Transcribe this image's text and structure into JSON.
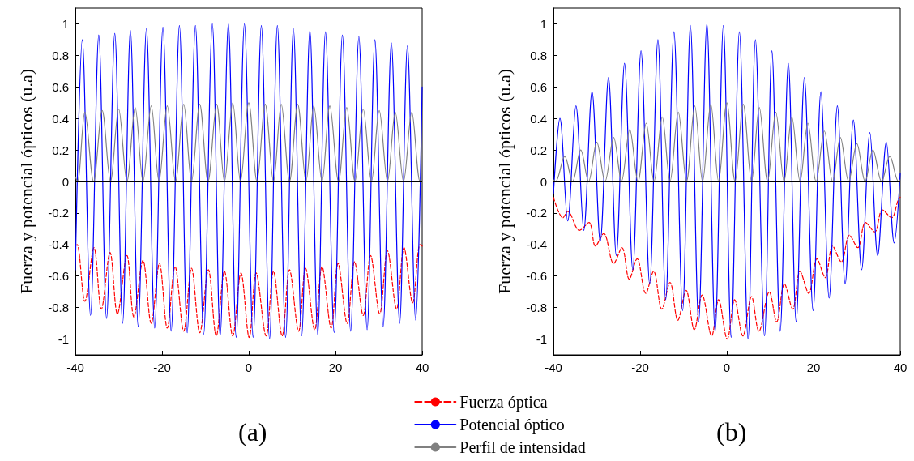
{
  "chart_data": [
    {
      "type": "line",
      "title": "(a)",
      "ylabel": "Fuerza y potencial ópticos (u.a)",
      "xlim": [
        -40,
        40
      ],
      "xticks": [
        -40,
        -20,
        0,
        20,
        40
      ],
      "ylim": [
        -1.1,
        1.1
      ],
      "yticks": [
        -1,
        -0.8,
        -0.6,
        -0.4,
        -0.2,
        0,
        0.2,
        0.4,
        0.6,
        0.8,
        1
      ],
      "grid": false,
      "marker": "none",
      "legend": "bottom right",
      "ref_lines": [
        {
          "axis": "y",
          "value": 0,
          "color": "#000000"
        }
      ],
      "series": [
        {
          "name": "Fuerza óptica",
          "color": "#ff0000",
          "line_style": "dashed",
          "x": [
            -40,
            -39.6,
            -37.8,
            -35.7,
            -34.0,
            -32.0,
            -30.3,
            -28.1,
            -26.5,
            -24.4,
            -22.5,
            -20.6,
            -18.8,
            -17.0,
            -15.0,
            -13.2,
            -11.3,
            -9.3,
            -7.5,
            -5.6,
            -3.7,
            -1.8,
            0.1,
            1.7,
            4.0,
            5.7,
            7.7,
            9.4,
            11.5,
            13.1,
            15.2,
            16.9,
            19.0,
            20.6,
            22.7,
            24.4,
            26.4,
            28.1,
            30.2,
            32.0,
            34.1,
            35.8,
            37.8,
            39.5,
            40
          ],
          "values": [
            -0.41,
            -0.4,
            -0.76,
            -0.42,
            -0.81,
            -0.45,
            -0.84,
            -0.47,
            -0.86,
            -0.5,
            -0.9,
            -0.52,
            -0.93,
            -0.54,
            -0.95,
            -0.55,
            -0.96,
            -0.56,
            -0.98,
            -0.57,
            -0.98,
            -0.58,
            -0.99,
            -0.58,
            -0.98,
            -0.57,
            -0.98,
            -0.56,
            -0.95,
            -0.55,
            -0.94,
            -0.54,
            -0.93,
            -0.52,
            -0.9,
            -0.51,
            -0.85,
            -0.47,
            -0.84,
            -0.44,
            -0.81,
            -0.42,
            -0.77,
            -0.4,
            -0.41
          ]
        },
        {
          "name": "Potencial óptico",
          "color": "#0000ff",
          "x": [
            -40,
            -38.4,
            -36.5,
            -34.6,
            -32.8,
            -30.9,
            -29.1,
            -27.3,
            -25.5,
            -23.6,
            -21.7,
            -19.8,
            -17.9,
            -16.0,
            -14.2,
            -12.3,
            -10.4,
            -8.4,
            -6.6,
            -4.7,
            -2.9,
            -1.0,
            1.0,
            2.9,
            4.8,
            6.6,
            8.5,
            10.3,
            12.2,
            14.1,
            15.9,
            17.7,
            19.7,
            21.6,
            23.5,
            25.4,
            27.3,
            29.1,
            31.0,
            32.9,
            34.8,
            36.6,
            38.5,
            40
          ],
          "values": [
            -0.56,
            0.9,
            -0.85,
            0.93,
            -0.87,
            0.94,
            -0.9,
            0.96,
            -0.92,
            0.97,
            -0.93,
            0.98,
            -0.95,
            0.99,
            -0.96,
            0.99,
            -0.97,
            1.0,
            -0.98,
            1.0,
            -0.99,
            1.0,
            -0.99,
            0.99,
            -1.0,
            0.99,
            -0.99,
            0.97,
            -0.98,
            0.96,
            -0.97,
            0.95,
            -0.96,
            0.93,
            -0.95,
            0.92,
            -0.94,
            0.9,
            -0.92,
            0.88,
            -0.9,
            0.86,
            -0.88,
            0.6
          ]
        },
        {
          "name": "Perfil de intensidad",
          "color": "#808080",
          "x": [
            -40,
            -39.5,
            -37.8,
            -35.8,
            -33.8,
            -31.9,
            -30.0,
            -28.1,
            -26.2,
            -24.4,
            -22.5,
            -20.7,
            -18.8,
            -16.9,
            -15.0,
            -13.2,
            -11.3,
            -9.4,
            -7.4,
            -5.6,
            -3.7,
            -1.9,
            0.0,
            1.9,
            3.8,
            5.7,
            7.5,
            9.4,
            11.3,
            13.2,
            15.0,
            16.9,
            18.7,
            20.7,
            22.6,
            24.5,
            26.4,
            28.3,
            30.1,
            32.0,
            33.8,
            35.7,
            37.6,
            39.5,
            40
          ],
          "values": [
            0.03,
            0,
            0.44,
            0,
            0.45,
            0,
            0.46,
            0,
            0.47,
            0,
            0.48,
            0,
            0.48,
            0,
            0.49,
            0,
            0.49,
            0,
            0.49,
            0,
            0.5,
            0,
            0.5,
            0,
            0.49,
            0,
            0.49,
            0,
            0.49,
            0,
            0.48,
            0,
            0.48,
            0,
            0.47,
            0,
            0.46,
            0,
            0.45,
            0,
            0.44,
            0,
            0.44,
            0,
            0.06
          ]
        }
      ]
    },
    {
      "type": "line",
      "title": "(b)",
      "ylabel": "Fuerza y potencial ópticos (u.a)",
      "xlim": [
        -40,
        40
      ],
      "xticks": [
        -40,
        -20,
        0,
        20,
        40
      ],
      "ylim": [
        -1.1,
        1.1
      ],
      "yticks": [
        -1,
        -0.8,
        -0.6,
        -0.4,
        -0.2,
        0,
        0.2,
        0.4,
        0.6,
        0.8,
        1
      ],
      "grid": false,
      "marker": "none",
      "ref_lines": [
        {
          "axis": "y",
          "value": 0,
          "color": "#000000"
        }
      ],
      "series": [
        {
          "color": "#ff0000",
          "line_style": "dashed",
          "x": [
            -40,
            -37.8,
            -36.7,
            -34.0,
            -31.8,
            -30.3,
            -28.4,
            -26.1,
            -24.2,
            -22.5,
            -20.7,
            -18.7,
            -16.9,
            -15.0,
            -13.1,
            -11.3,
            -9.4,
            -7.5,
            -5.7,
            -3.5,
            -1.9,
            0.1,
            1.8,
            3.7,
            5.7,
            7.4,
            9.8,
            11.5,
            13.3,
            15.2,
            16.9,
            18.9,
            20.8,
            22.7,
            24.4,
            26.4,
            28.3,
            30.2,
            32.0,
            34.1,
            35.9,
            38.0,
            39.5,
            40
          ],
          "values": [
            -0.1,
            -0.23,
            -0.19,
            -0.31,
            -0.26,
            -0.41,
            -0.33,
            -0.52,
            -0.42,
            -0.62,
            -0.49,
            -0.71,
            -0.57,
            -0.81,
            -0.64,
            -0.88,
            -0.69,
            -0.94,
            -0.72,
            -0.98,
            -0.75,
            -1.0,
            -0.75,
            -0.98,
            -0.73,
            -0.95,
            -0.7,
            -0.89,
            -0.65,
            -0.81,
            -0.57,
            -0.71,
            -0.49,
            -0.61,
            -0.41,
            -0.51,
            -0.34,
            -0.42,
            -0.26,
            -0.32,
            -0.18,
            -0.23,
            -0.12,
            -0.1
          ]
        },
        {
          "color": "#0000ff",
          "x": [
            -40,
            -38.5,
            -36.7,
            -34.8,
            -33.0,
            -31.1,
            -29.2,
            -27.3,
            -25.5,
            -23.6,
            -21.7,
            -19.8,
            -17.8,
            -15.9,
            -14.1,
            -12.2,
            -10.2,
            -8.4,
            -6.5,
            -4.6,
            -2.7,
            -0.8,
            1.0,
            2.9,
            4.9,
            6.6,
            8.7,
            10.4,
            12.3,
            14.2,
            16.0,
            17.9,
            19.9,
            21.7,
            23.6,
            25.5,
            27.3,
            29.2,
            31.1,
            33.0,
            34.8,
            36.8,
            38.6,
            40
          ],
          "values": [
            -0.08,
            0.4,
            -0.25,
            0.48,
            -0.31,
            0.57,
            -0.38,
            0.66,
            -0.47,
            0.75,
            -0.56,
            0.83,
            -0.65,
            0.9,
            -0.75,
            0.95,
            -0.82,
            0.99,
            -0.89,
            1.0,
            -0.95,
            0.99,
            -0.99,
            0.95,
            -1.0,
            0.9,
            -0.98,
            0.83,
            -0.95,
            0.75,
            -0.89,
            0.66,
            -0.82,
            0.57,
            -0.74,
            0.48,
            -0.65,
            0.39,
            -0.56,
            0.31,
            -0.47,
            0.25,
            -0.39,
            0.05
          ]
        },
        {
          "color": "#808080",
          "x": [
            -40,
            -39.5,
            -37.4,
            -35.6,
            -33.7,
            -31.9,
            -30.0,
            -28.1,
            -26.1,
            -24.3,
            -22.4,
            -20.5,
            -18.6,
            -16.8,
            -14.9,
            -13.1,
            -11.2,
            -9.3,
            -7.4,
            -5.6,
            -3.7,
            -1.9,
            0.0,
            1.9,
            3.8,
            5.7,
            7.5,
            9.4,
            11.3,
            13.2,
            15.0,
            16.9,
            18.7,
            20.6,
            22.5,
            24.4,
            26.2,
            28.1,
            30.0,
            31.9,
            33.7,
            35.7,
            37.6,
            39.6,
            40
          ],
          "values": [
            0.01,
            0,
            0.16,
            0,
            0.2,
            0,
            0.25,
            0,
            0.28,
            0,
            0.33,
            0,
            0.37,
            0,
            0.41,
            0,
            0.44,
            0,
            0.48,
            0,
            0.49,
            0,
            0.5,
            0,
            0.49,
            0,
            0.47,
            0,
            0.44,
            0,
            0.41,
            0,
            0.37,
            0,
            0.32,
            0,
            0.28,
            0,
            0.24,
            0,
            0.2,
            0,
            0.16,
            0,
            0.01
          ]
        }
      ]
    }
  ]
}
